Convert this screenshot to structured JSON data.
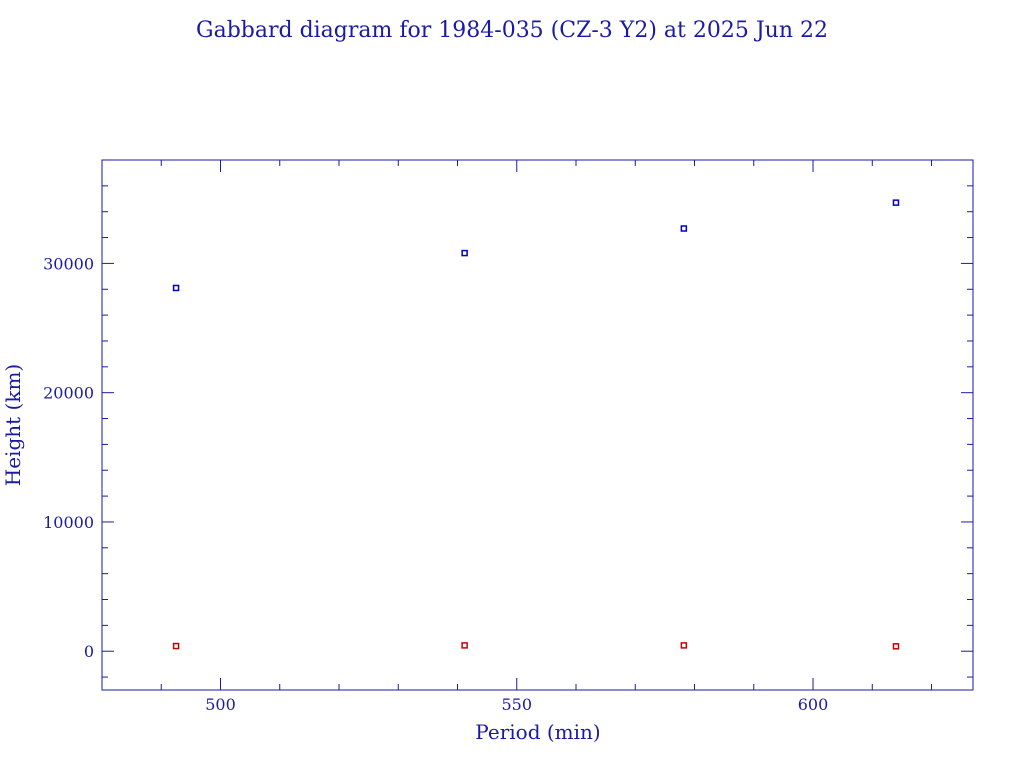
{
  "chart_data": {
    "type": "scatter",
    "title": "Gabbard diagram for 1984-035 (CZ-3 Y2) at 2025 Jun 22",
    "xlabel": "Period (min)",
    "ylabel": "Height (km)",
    "xlim": [
      480,
      627
    ],
    "ylim": [
      -3000,
      38000
    ],
    "x_ticks": [
      500,
      550,
      600
    ],
    "y_ticks": [
      0,
      10000,
      20000,
      30000
    ],
    "x_tick_labels": [
      "500",
      "550",
      "600"
    ],
    "y_tick_labels": [
      "0",
      "10000",
      "20000",
      "30000"
    ],
    "grid": false,
    "colors": {
      "axis": "#1a1aa6",
      "apogee": "#0000cc",
      "perigee": "#cc0000"
    },
    "series": [
      {
        "x": [
          492.5,
          541.2,
          578.2,
          614.0
        ],
        "y": [
          28100,
          30800,
          32700,
          34700
        ]
      },
      {
        "x": [
          492.5,
          541.2,
          578.2,
          614.0
        ],
        "y": [
          400,
          450,
          450,
          380
        ]
      }
    ]
  }
}
